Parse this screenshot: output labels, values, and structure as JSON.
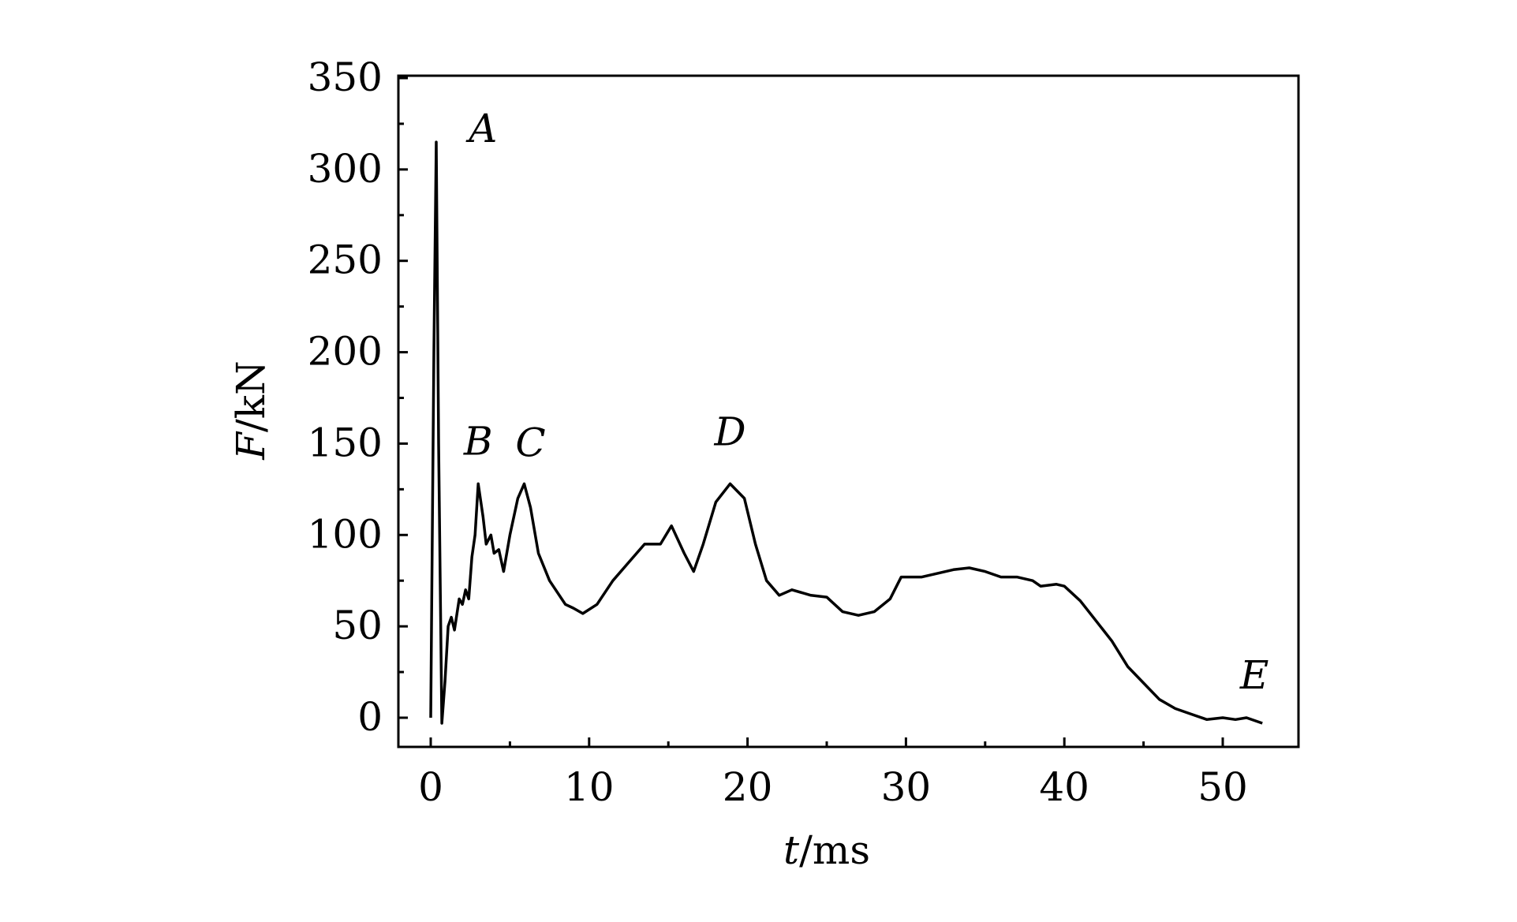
{
  "chart_data": {
    "type": "line",
    "title": "",
    "xlabel_var": "t",
    "xlabel_unit": "/ms",
    "ylabel_var": "F",
    "ylabel_unit": "/kN",
    "xlim": [
      -2,
      55
    ],
    "ylim": [
      -15,
      350
    ],
    "xticks": [
      0,
      10,
      20,
      30,
      40,
      50
    ],
    "yticks": [
      0,
      50,
      100,
      150,
      200,
      250,
      300,
      350
    ],
    "grid": false,
    "series": [
      {
        "name": "F",
        "color": "#000000",
        "x": [
          0,
          0.2,
          0.35,
          0.5,
          0.7,
          0.9,
          1.1,
          1.3,
          1.5,
          1.8,
          2.0,
          2.2,
          2.4,
          2.6,
          2.8,
          3.0,
          3.3,
          3.5,
          3.8,
          4.0,
          4.3,
          4.6,
          5.0,
          5.5,
          5.9,
          6.3,
          6.8,
          7.5,
          8.5,
          9.0,
          9.6,
          10.5,
          11.5,
          12.5,
          13.5,
          14.5,
          15.2,
          16.0,
          16.6,
          17.2,
          18.0,
          18.9,
          19.8,
          20.5,
          21.2,
          22.0,
          22.8,
          24.0,
          25.0,
          26.0,
          27.0,
          28.0,
          29.0,
          29.7,
          31.0,
          32.0,
          33.0,
          34.0,
          35.0,
          36.0,
          37.0,
          38.0,
          38.5,
          39.5,
          40.0,
          41.0,
          42.0,
          43.0,
          44.0,
          45.0,
          46.0,
          47.0,
          48.0,
          49.0,
          50.0,
          50.8,
          51.5,
          52.5
        ],
        "y": [
          0,
          200,
          315,
          150,
          -3,
          20,
          50,
          55,
          48,
          65,
          62,
          70,
          65,
          88,
          100,
          128,
          110,
          95,
          100,
          90,
          92,
          80,
          100,
          120,
          128,
          115,
          90,
          75,
          62,
          60,
          57,
          62,
          75,
          85,
          95,
          95,
          105,
          90,
          80,
          95,
          118,
          128,
          120,
          95,
          75,
          67,
          70,
          67,
          66,
          58,
          56,
          58,
          65,
          77,
          77,
          79,
          81,
          82,
          80,
          77,
          77,
          75,
          72,
          73,
          72,
          64,
          53,
          42,
          28,
          19,
          10,
          5,
          2,
          -1,
          0,
          -1,
          0,
          -3
        ]
      }
    ],
    "annotations": [
      {
        "text": "A",
        "x": 3.3,
        "y": 315
      },
      {
        "text": "B",
        "x": 3.0,
        "y": 144
      },
      {
        "text": "C",
        "x": 6.3,
        "y": 143
      },
      {
        "text": "D",
        "x": 18.9,
        "y": 149
      },
      {
        "text": "E",
        "x": 52.0,
        "y": 16
      }
    ]
  }
}
